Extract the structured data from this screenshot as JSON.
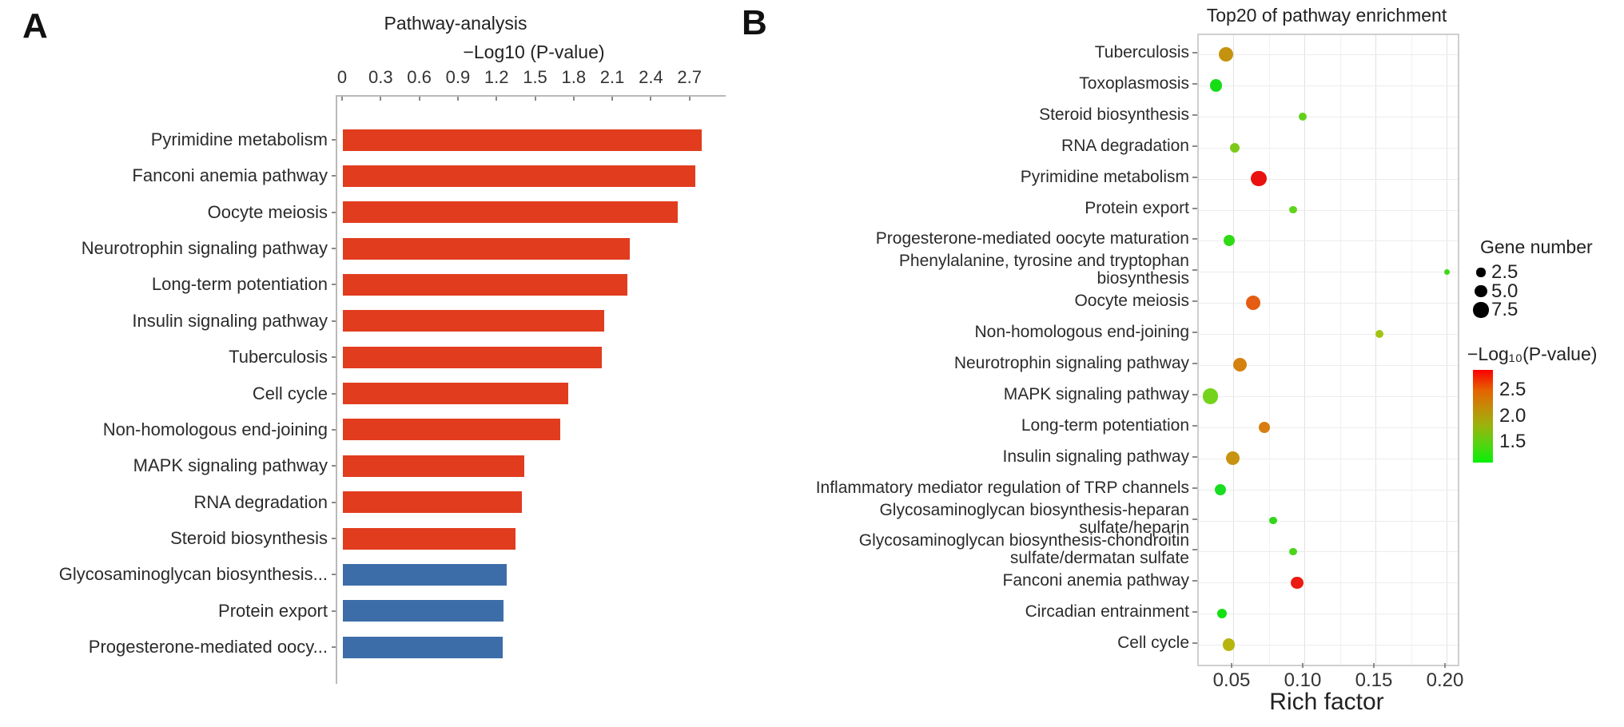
{
  "panels": {
    "a_letter": "A",
    "b_letter": "B"
  },
  "chart_data": [
    {
      "type": "bar",
      "title": "Pathway-analysis",
      "xlabel": "−Log10 (P-value)",
      "orientation": "horizontal",
      "xlim": [
        0,
        2.96
      ],
      "xticks": [
        0,
        0.3,
        0.6,
        0.9,
        1.2,
        1.5,
        1.8,
        2.1,
        2.4,
        2.7
      ],
      "xtick_labels": [
        "0",
        "0.3",
        "0.6",
        "0.9",
        "1.2",
        "1.5",
        "1.8",
        "2.1",
        "2.4",
        "2.7"
      ],
      "bar_colors": {
        "significant_red": "#e13c1e",
        "other_blue": "#3c6da8"
      },
      "bars": [
        {
          "label": "Pyrimidine metabolism",
          "value": 2.79,
          "color": "#e13c1e"
        },
        {
          "label": "Fanconi anemia pathway",
          "value": 2.74,
          "color": "#e13c1e"
        },
        {
          "label": "Oocyte meiosis",
          "value": 2.6,
          "color": "#e13c1e"
        },
        {
          "label": "Neurotrophin signaling pathway",
          "value": 2.23,
          "color": "#e13c1e"
        },
        {
          "label": "Long-term potentiation",
          "value": 2.21,
          "color": "#e13c1e"
        },
        {
          "label": "Insulin signaling pathway",
          "value": 2.03,
          "color": "#e13c1e"
        },
        {
          "label": "Tuberculosis",
          "value": 2.01,
          "color": "#e13c1e"
        },
        {
          "label": "Cell cycle",
          "value": 1.75,
          "color": "#e13c1e"
        },
        {
          "label": "Non-homologous end-joining",
          "value": 1.69,
          "color": "#e13c1e"
        },
        {
          "label": "MAPK signaling pathway",
          "value": 1.41,
          "color": "#e13c1e"
        },
        {
          "label": "RNA degradation",
          "value": 1.39,
          "color": "#e13c1e"
        },
        {
          "label": "Steroid biosynthesis",
          "value": 1.34,
          "color": "#e13c1e"
        },
        {
          "label": "Glycosaminoglycan biosynthesis...",
          "value": 1.27,
          "color": "#3c6da8"
        },
        {
          "label": "Protein export",
          "value": 1.25,
          "color": "#3c6da8"
        },
        {
          "label": "Progesterone-mediated oocy...",
          "value": 1.24,
          "color": "#3c6da8"
        }
      ]
    },
    {
      "type": "scatter",
      "title": "Top20 of pathway enrichment",
      "xlabel": "Rich factor",
      "xlim": [
        0.026,
        0.208
      ],
      "xticks": [
        0.05,
        0.1,
        0.15,
        0.2
      ],
      "xtick_labels": [
        "0.05",
        "0.10",
        "0.15",
        "0.20"
      ],
      "minor_xticks": [
        0.075,
        0.125,
        0.175
      ],
      "grid": true,
      "points": [
        {
          "label_lines": [
            "Tuberculosis"
          ],
          "rich_factor": 0.045,
          "gene_number": 7,
          "neg_log10_p": 2.0,
          "color": "#c5920d"
        },
        {
          "label_lines": [
            "Toxoplasmosis"
          ],
          "rich_factor": 0.038,
          "gene_number": 5,
          "neg_log10_p": 1.35,
          "color": "#16dd16"
        },
        {
          "label_lines": [
            "Steroid biosynthesis"
          ],
          "rich_factor": 0.099,
          "gene_number": 2,
          "neg_log10_p": 1.55,
          "color": "#63d01b"
        },
        {
          "label_lines": [
            "RNA degradation"
          ],
          "rich_factor": 0.051,
          "gene_number": 3,
          "neg_log10_p": 1.6,
          "color": "#7cc91c"
        },
        {
          "label_lines": [
            "Pyrimidine metabolism"
          ],
          "rich_factor": 0.068,
          "gene_number": 8,
          "neg_log10_p": 2.8,
          "color": "#ea1111"
        },
        {
          "label_lines": [
            "Protein export"
          ],
          "rich_factor": 0.092,
          "gene_number": 2,
          "neg_log10_p": 1.55,
          "color": "#5fd41a"
        },
        {
          "label_lines": [
            "Progesterone-mediated oocyte maturation"
          ],
          "rich_factor": 0.047,
          "gene_number": 4,
          "neg_log10_p": 1.4,
          "color": "#2edb14"
        },
        {
          "label_lines": [
            "Phenylalanine, tyrosine and tryptophan",
            "biosynthesis"
          ],
          "rich_factor": 0.2,
          "gene_number": 1,
          "neg_log10_p": 1.45,
          "color": "#3fd816"
        },
        {
          "label_lines": [
            "Oocyte meiosis"
          ],
          "rich_factor": 0.064,
          "gene_number": 7,
          "neg_log10_p": 2.5,
          "color": "#e55c13"
        },
        {
          "label_lines": [
            "Non-homologous end-joining"
          ],
          "rich_factor": 0.153,
          "gene_number": 2,
          "neg_log10_p": 1.7,
          "color": "#a3c40f"
        },
        {
          "label_lines": [
            "Neurotrophin signaling pathway"
          ],
          "rich_factor": 0.055,
          "gene_number": 6,
          "neg_log10_p": 2.25,
          "color": "#d5810e"
        },
        {
          "label_lines": [
            "MAPK signaling pathway"
          ],
          "rich_factor": 0.034,
          "gene_number": 8,
          "neg_log10_p": 1.55,
          "color": "#74d31a"
        },
        {
          "label_lines": [
            "Long-term potentiation"
          ],
          "rich_factor": 0.072,
          "gene_number": 4,
          "neg_log10_p": 2.25,
          "color": "#d87d10"
        },
        {
          "label_lines": [
            "Insulin signaling pathway"
          ],
          "rich_factor": 0.05,
          "gene_number": 6,
          "neg_log10_p": 2.0,
          "color": "#c79310"
        },
        {
          "label_lines": [
            "Inflammatory mediator regulation of TRP channels"
          ],
          "rich_factor": 0.041,
          "gene_number": 4,
          "neg_log10_p": 1.35,
          "color": "#18dd20"
        },
        {
          "label_lines": [
            "Glycosaminoglycan biosynthesis-heparan",
            "sulfate/heparin"
          ],
          "rich_factor": 0.078,
          "gene_number": 2,
          "neg_log10_p": 1.4,
          "color": "#2fd818"
        },
        {
          "label_lines": [
            "Glycosaminoglycan biosynthesis-chondroitin",
            "sulfate/dermatan sulfate"
          ],
          "rich_factor": 0.092,
          "gene_number": 2,
          "neg_log10_p": 1.5,
          "color": "#4bd51a"
        },
        {
          "label_lines": [
            "Fanconi anemia pathway"
          ],
          "rich_factor": 0.095,
          "gene_number": 5,
          "neg_log10_p": 2.7,
          "color": "#ec1b12"
        },
        {
          "label_lines": [
            "Circadian entrainment"
          ],
          "rich_factor": 0.042,
          "gene_number": 3,
          "neg_log10_p": 1.35,
          "color": "#14e014"
        },
        {
          "label_lines": [
            "Cell cycle"
          ],
          "rich_factor": 0.047,
          "gene_number": 5,
          "neg_log10_p": 1.85,
          "color": "#b7b40e"
        }
      ],
      "legend": {
        "size_legend": {
          "title": "Gene number",
          "entries": [
            {
              "label": "2.5",
              "value": 2.5
            },
            {
              "label": "5.0",
              "value": 5.0
            },
            {
              "label": "7.5",
              "value": 7.5
            }
          ],
          "dot_color": "#000000"
        },
        "color_legend": {
          "title": "−Log₁₀(P-value)",
          "labels": [
            "2.5",
            "2.0",
            "1.5"
          ],
          "gradient_top_to_bottom": [
            "#fb0000",
            "#e56300",
            "#c18f08",
            "#9bb30c",
            "#55d411",
            "#07f007"
          ]
        }
      }
    }
  ]
}
